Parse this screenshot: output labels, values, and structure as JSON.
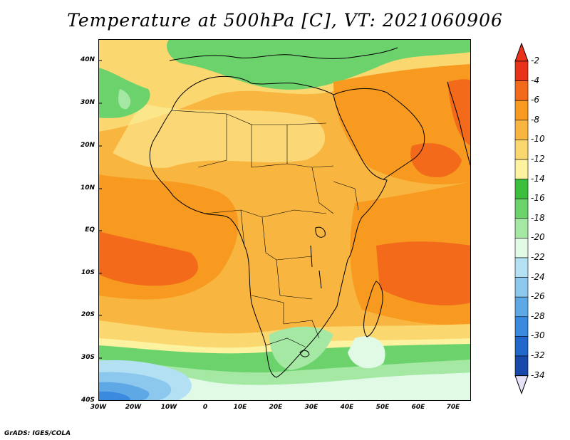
{
  "title": "Temperature at 500hPa [C], VT: 2021060906",
  "credit": "GrADS: IGES/COLA",
  "lat_ticks": [
    "40N",
    "30N",
    "20N",
    "10N",
    "EQ",
    "10S",
    "20S",
    "30S",
    "40S"
  ],
  "lon_ticks": [
    "30W",
    "20W",
    "10W",
    "0",
    "10E",
    "20E",
    "30E",
    "40E",
    "50E",
    "60E",
    "70E"
  ],
  "colorbar": {
    "labels": [
      "-2",
      "-4",
      "-6",
      "-8",
      "-10",
      "-12",
      "-14",
      "-16",
      "-18",
      "-20",
      "-22",
      "-24",
      "-26",
      "-28",
      "-30",
      "-32",
      "-34"
    ],
    "colors": [
      "#e8321a",
      "#f26a1a",
      "#f79a1f",
      "#f8b640",
      "#fbd770",
      "#fdf2a0",
      "#3cbf3c",
      "#6cd36c",
      "#a4e8a4",
      "#e0fae6",
      "#b4e0f4",
      "#8cc8ee",
      "#5ea8e6",
      "#3a8ae0",
      "#2268cc",
      "#1848aa",
      "#0a2078"
    ]
  }
}
